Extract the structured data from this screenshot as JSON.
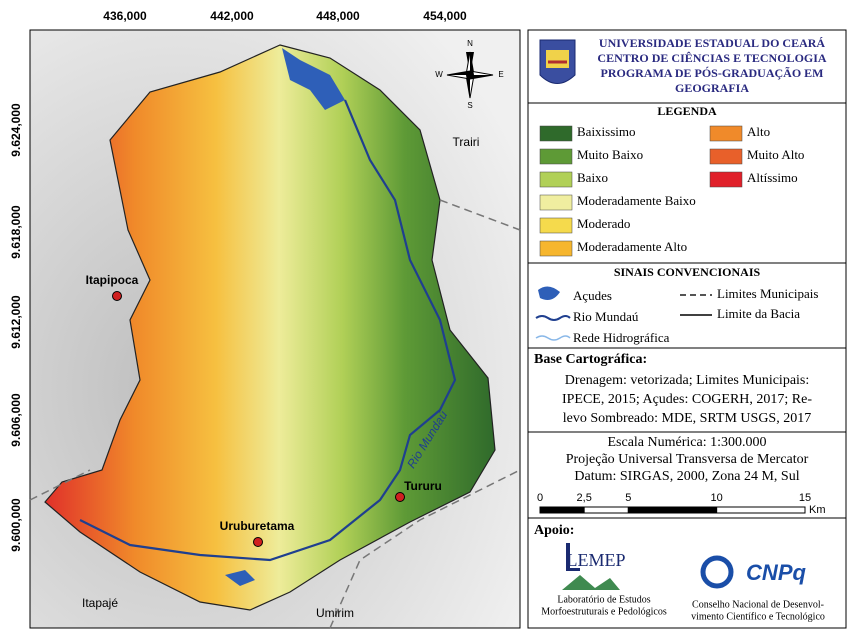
{
  "map": {
    "top_ticks": [
      "436,000",
      "442,000",
      "448,000",
      "454,000"
    ],
    "left_ticks": [
      "9.624,000",
      "9.618,000",
      "9.612,000",
      "9.606,000",
      "9.600,000"
    ],
    "places": {
      "itapipoca": "Itapipoca",
      "trairi": "Trairi",
      "tururu": "Tururu",
      "uruburetama": "Uruburetama",
      "itapaje": "Itapajé",
      "umirim": "Umirim",
      "river": "Rio Mundaú"
    },
    "compass": {
      "n": "N",
      "s": "S",
      "e": "E",
      "w": "W"
    }
  },
  "header": {
    "lines": [
      "UNIVERSIDADE ESTADUAL DO CEARÁ",
      "CENTRO DE CIÊNCIAS E TECNOLOGIA",
      "PROGRAMA DE PÓS-GRADUAÇÃO EM",
      "GEOGRAFIA"
    ]
  },
  "legend": {
    "title": "LEGENDA",
    "items": [
      {
        "label": "Baixissimo",
        "color": "#2f6a2b"
      },
      {
        "label": "Muito Baixo",
        "color": "#5e9a36"
      },
      {
        "label": "Baixo",
        "color": "#b1d057"
      },
      {
        "label": "Moderadamente Baixo",
        "color": "#f0eea0"
      },
      {
        "label": "Moderado",
        "color": "#f5da4c"
      },
      {
        "label": "Moderadamente Alto",
        "color": "#f6b62e"
      },
      {
        "label": "Alto",
        "color": "#f08a2a"
      },
      {
        "label": "Muito Alto",
        "color": "#e8602a"
      },
      {
        "label": "Altíssimo",
        "color": "#e0202a"
      }
    ]
  },
  "symbols": {
    "title": "SINAIS CONVENCIONAIS",
    "acudes": "Açudes",
    "limites_municipais": "Limites Municipais",
    "rio": "Rio Mundaú",
    "limite_bacia": "Limite da Bacia",
    "rede": "Rede Hidrográfica"
  },
  "base": {
    "title": "Base Cartográfica:",
    "lines": [
      "Drenagem: vetorizada; Limites Municipais:",
      "IPECE, 2015; Açudes: COGERH, 2017; Re-",
      "levo Sombreado: MDE, SRTM USGS, 2017"
    ]
  },
  "scale": {
    "lines": [
      "Escala Numérica: 1:300.000",
      "Projeção Universal Transversa de Mercator",
      "Datum: SIRGAS, 2000, Zona 24 M, Sul"
    ],
    "ticks": [
      "0",
      "2,5",
      "5",
      "10",
      "15"
    ],
    "unit": "Km"
  },
  "support": {
    "title": "Apoio:",
    "lemep": "LEMEP",
    "lemep_name": [
      "Laboratório de Estudos",
      "Morfoestruturais e Pedológicos"
    ],
    "cnpq": "CNPq",
    "cnpq_name": [
      "Conselho Nacional de Desenvol-",
      "vimento Científico e Tecnológico"
    ]
  }
}
